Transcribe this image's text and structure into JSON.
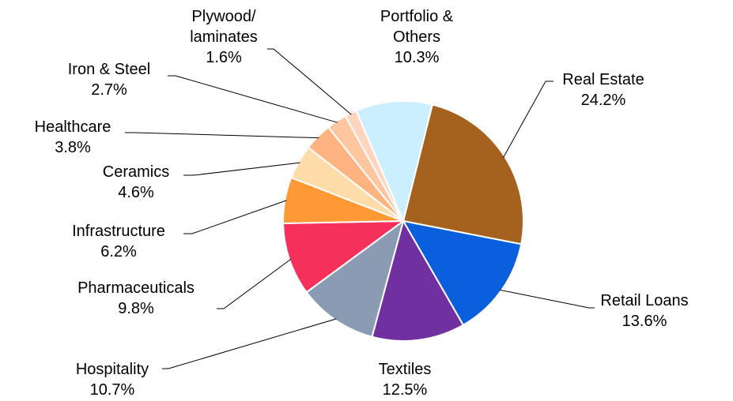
{
  "chart_data": {
    "type": "pie",
    "categories": [
      "Real Estate",
      "Retail Loans",
      "Textiles",
      "Hospitality",
      "Pharmaceuticals",
      "Infrastructure",
      "Ceramics",
      "Healthcare",
      "Iron & Steel",
      "Plywood/ laminates",
      "Portfolio & Others"
    ],
    "values": [
      24.2,
      13.6,
      12.5,
      10.7,
      9.8,
      6.2,
      4.6,
      3.8,
      2.7,
      1.6,
      10.3
    ],
    "value_labels": [
      "24.2%",
      "13.6%",
      "12.5%",
      "10.7%",
      "9.8%",
      "6.2%",
      "4.6%",
      "3.8%",
      "2.7%",
      "1.6%",
      "10.3%"
    ],
    "colors": [
      "#a5621f",
      "#0a5fdc",
      "#7030a0",
      "#8a9bb3",
      "#f5305a",
      "#ff9933",
      "#ffdcaa",
      "#ffb380",
      "#ffc6a0",
      "#ffd5bf",
      "#ccefff"
    ]
  }
}
